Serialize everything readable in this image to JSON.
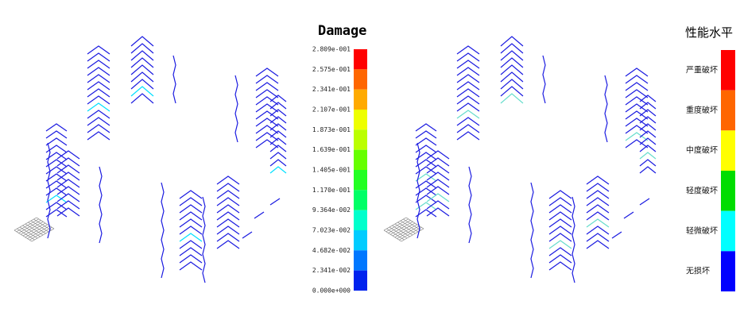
{
  "damage_legend": {
    "title": "Damage",
    "labels": [
      "2.809e-001",
      "2.575e-001",
      "2.341e-001",
      "2.107e-001",
      "1.873e-001",
      "1.639e-001",
      "1.405e-001",
      "1.170e-001",
      "9.364e-002",
      "7.023e-002",
      "4.682e-002",
      "2.341e-002",
      "0.000e+000"
    ],
    "colors": [
      "#ff0000",
      "#ff6600",
      "#ffaa00",
      "#eeff00",
      "#bbff00",
      "#66ff00",
      "#22ff22",
      "#00ff66",
      "#00ffcc",
      "#00ccff",
      "#0077ff",
      "#0022ee"
    ]
  },
  "performance_legend": {
    "title": "性能水平",
    "levels": [
      "严重破坏",
      "重度破坏",
      "中度破坏",
      "轻度破坏",
      "轻微破坏",
      "无损坏"
    ],
    "colors": [
      "#ff0000",
      "#ff6600",
      "#ffff00",
      "#00dd00",
      "#00ffff",
      "#0000ff"
    ]
  }
}
